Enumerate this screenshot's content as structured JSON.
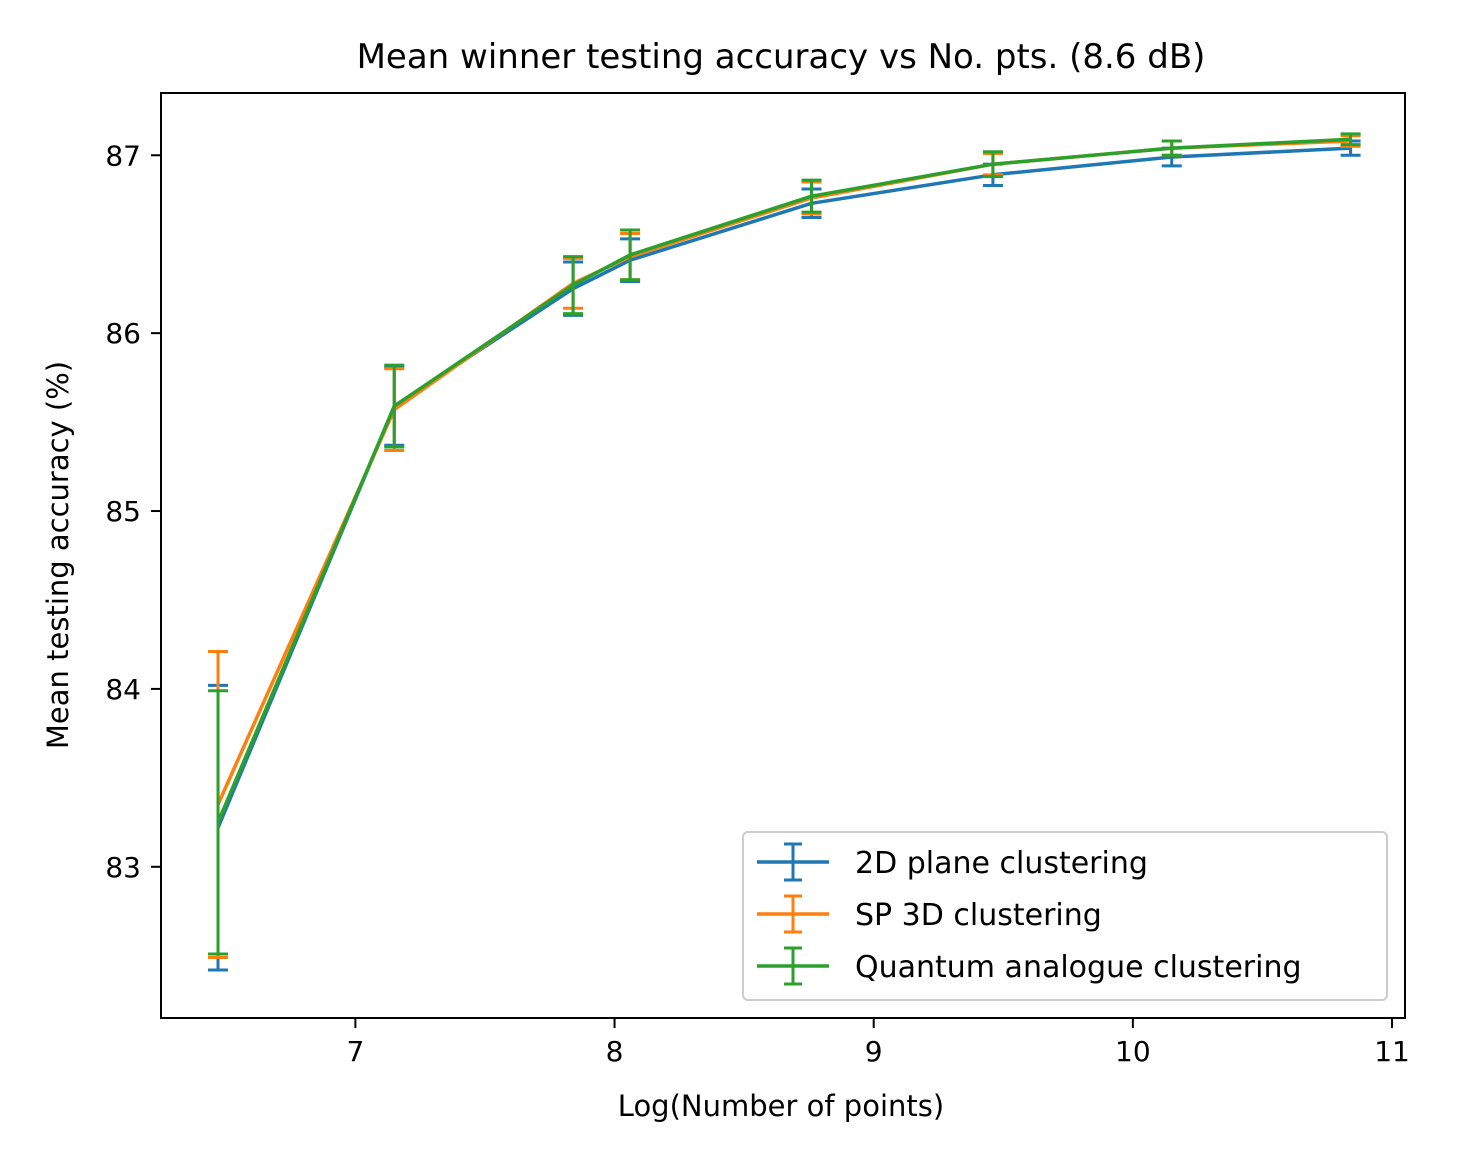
{
  "chart_data": {
    "type": "line",
    "title": "Mean winner testing accuracy vs No. pts. (8.6 dB)",
    "xlabel": "Log(Number of points)",
    "ylabel": "Mean testing accuracy  (%)",
    "xlim": [
      6.25,
      11.05
    ],
    "ylim": [
      82.15,
      87.35
    ],
    "xticks": [
      7,
      8,
      9,
      10,
      11
    ],
    "yticks": [
      83,
      84,
      85,
      86,
      87
    ],
    "grid": false,
    "legend_position": "lower-right",
    "x": [
      6.47,
      7.15,
      7.84,
      8.06,
      8.76,
      9.46,
      10.15,
      10.84
    ],
    "series": [
      {
        "name": "2D plane clustering",
        "color": "#1f77b4",
        "values": [
          83.22,
          85.59,
          86.25,
          86.41,
          86.73,
          86.89,
          86.99,
          87.04
        ],
        "errors": [
          0.8,
          0.22,
          0.15,
          0.12,
          0.08,
          0.06,
          0.05,
          0.04
        ]
      },
      {
        "name": "SP 3D clustering",
        "color": "#ff7f0e",
        "values": [
          83.35,
          85.57,
          86.28,
          86.43,
          86.76,
          86.95,
          87.04,
          87.08
        ],
        "errors": [
          0.86,
          0.23,
          0.14,
          0.13,
          0.09,
          0.06,
          0.04,
          0.03
        ]
      },
      {
        "name": "Quantum analogue clustering",
        "color": "#2ca02c",
        "values": [
          83.25,
          85.59,
          86.27,
          86.44,
          86.77,
          86.95,
          87.04,
          87.09
        ],
        "errors": [
          0.74,
          0.23,
          0.16,
          0.14,
          0.09,
          0.07,
          0.04,
          0.03
        ]
      }
    ]
  }
}
